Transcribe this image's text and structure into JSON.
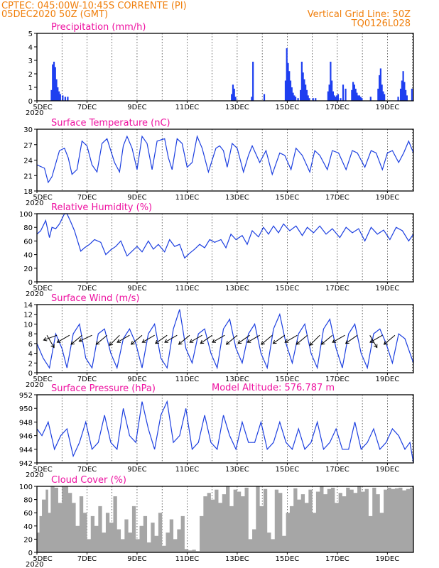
{
  "header": {
    "line1": "CPTEC:   045:00W-10:45S   CORRENTE (PI)",
    "line2": "05DEC2020 50Z (GMT)",
    "right1": "Vertical Grid Line: 50Z",
    "right2": "TQ0126L028"
  },
  "x_ticks": [
    "5DEC",
    "7DEC",
    "9DEC",
    "11DEC",
    "13DEC",
    "15DEC",
    "17DEC",
    "19DEC"
  ],
  "x_tick_positions": [
    0,
    2,
    4,
    6,
    8,
    10,
    12,
    14
  ],
  "x_sublabel": "2020",
  "colors": {
    "header": "#f07f0c",
    "title": "#ee11a0",
    "series": "#1c3fe0",
    "bars": "#1e3ff0",
    "cloud": "#a6a6a6"
  },
  "chart_data": [
    {
      "id": "precip",
      "type": "bar",
      "title": "Precipitation  (mm/h)",
      "ylim": [
        0,
        5
      ],
      "yticks": [
        "0",
        "1",
        "2",
        "3",
        "4",
        "5"
      ],
      "xlim_days": [
        0,
        15.04
      ],
      "x": [
        0.55,
        0.6,
        0.65,
        0.7,
        0.75,
        0.8,
        0.85,
        0.9,
        1.0,
        1.1,
        1.2,
        7.75,
        7.8,
        7.85,
        7.9,
        8.55,
        8.6,
        9.05,
        9.9,
        9.95,
        10.0,
        10.05,
        10.1,
        10.15,
        10.2,
        10.25,
        10.3,
        10.4,
        10.5,
        10.55,
        10.6,
        10.65,
        10.7,
        10.75,
        10.8,
        10.85,
        11.0,
        11.1,
        11.6,
        11.65,
        11.7,
        11.75,
        11.8,
        11.85,
        11.9,
        11.95,
        12.0,
        12.1,
        12.2,
        12.3,
        12.55,
        12.6,
        12.65,
        12.7,
        12.75,
        12.8,
        12.85,
        12.9,
        12.95,
        13.3,
        13.6,
        13.65,
        13.7,
        13.75,
        13.8,
        13.85,
        14.4,
        14.5,
        14.55,
        14.6,
        14.65,
        14.7,
        14.75,
        14.95
      ],
      "values": [
        0.8,
        2.7,
        2.9,
        2.5,
        1.6,
        1.0,
        0.7,
        0.5,
        0.4,
        0.3,
        0.3,
        0.5,
        1.2,
        0.9,
        0.3,
        0.3,
        2.9,
        0.5,
        1.5,
        3.9,
        2.8,
        2.2,
        1.5,
        1.0,
        0.6,
        0.4,
        0.3,
        0.2,
        0.8,
        2.9,
        2.1,
        1.6,
        1.2,
        0.8,
        0.4,
        0.2,
        0.2,
        0.2,
        0.7,
        1.2,
        2.9,
        1.5,
        0.7,
        0.4,
        0.3,
        0.4,
        0.5,
        0.2,
        1.2,
        0.9,
        0.8,
        1.4,
        1.2,
        0.9,
        0.6,
        0.4,
        0.4,
        0.3,
        0.2,
        0.3,
        0.9,
        1.9,
        2.4,
        1.2,
        0.7,
        0.5,
        0.3,
        0.9,
        1.5,
        2.2,
        1.4,
        0.8,
        0.4,
        0.9
      ]
    },
    {
      "id": "temp",
      "type": "line",
      "title": "Surface Temperature (nC)",
      "ylim": [
        18,
        31
      ],
      "yticks": [
        "18",
        "21",
        "24",
        "27",
        "30"
      ],
      "x": [
        0,
        0.3,
        0.45,
        0.6,
        0.9,
        1.1,
        1.25,
        1.4,
        1.6,
        1.8,
        2.0,
        2.2,
        2.4,
        2.6,
        2.8,
        3.1,
        3.3,
        3.45,
        3.6,
        3.8,
        4.0,
        4.2,
        4.4,
        4.6,
        4.8,
        5.1,
        5.25,
        5.4,
        5.6,
        5.8,
        6.0,
        6.2,
        6.4,
        6.6,
        6.85,
        7.15,
        7.3,
        7.45,
        7.6,
        7.8,
        8.0,
        8.25,
        8.45,
        8.6,
        8.9,
        9.15,
        9.4,
        9.7,
        9.9,
        10.15,
        10.35,
        10.6,
        10.9,
        11.1,
        11.3,
        11.6,
        11.8,
        12.05,
        12.35,
        12.6,
        12.8,
        13.1,
        13.35,
        13.55,
        13.8,
        14.0,
        14.2,
        14.45,
        14.65,
        14.85,
        15.04
      ],
      "values": [
        23.5,
        22.8,
        19.8,
        21.0,
        26.5,
        27.0,
        25.0,
        21.5,
        22.5,
        28.5,
        27.5,
        23.5,
        22.0,
        28.0,
        29.0,
        24.0,
        22.0,
        27.5,
        29.5,
        27.0,
        22.5,
        29.5,
        28.0,
        22.5,
        28.5,
        29.0,
        25.0,
        22.5,
        29.0,
        28.0,
        23.0,
        24.0,
        29.5,
        27.0,
        22.0,
        27.0,
        27.5,
        26.5,
        23.0,
        28.0,
        27.0,
        22.0,
        25.5,
        27.5,
        24.0,
        26.5,
        21.5,
        26.0,
        25.5,
        22.5,
        27.0,
        25.5,
        22.0,
        26.5,
        25.5,
        22.5,
        26.5,
        26.0,
        22.5,
        26.5,
        26.0,
        23.0,
        26.5,
        26.0,
        22.5,
        26.0,
        26.5,
        24.0,
        26.0,
        28.5,
        26.0
      ]
    },
    {
      "id": "rh",
      "type": "line",
      "title": "Relative Humidity (%)",
      "ylim": [
        0,
        100
      ],
      "yticks": [
        "0",
        "20",
        "40",
        "60",
        "80",
        "100"
      ],
      "x": [
        0,
        0.15,
        0.35,
        0.5,
        0.6,
        0.75,
        0.9,
        1.1,
        1.2,
        1.35,
        1.5,
        1.75,
        1.9,
        2.1,
        2.3,
        2.55,
        2.75,
        2.95,
        3.15,
        3.35,
        3.6,
        3.8,
        4.0,
        4.2,
        4.45,
        4.65,
        4.85,
        5.1,
        5.3,
        5.5,
        5.7,
        5.9,
        6.1,
        6.3,
        6.5,
        6.7,
        6.9,
        7.1,
        7.35,
        7.55,
        7.75,
        7.95,
        8.2,
        8.4,
        8.6,
        8.85,
        9.05,
        9.25,
        9.45,
        9.65,
        9.85,
        10.1,
        10.35,
        10.6,
        10.8,
        11.05,
        11.3,
        11.55,
        11.8,
        12.1,
        12.35,
        12.6,
        12.85,
        13.1,
        13.35,
        13.6,
        13.85,
        14.1,
        14.35,
        14.6,
        14.85,
        15.04
      ],
      "values": [
        70,
        75,
        90,
        65,
        80,
        78,
        85,
        100,
        100,
        88,
        75,
        45,
        50,
        55,
        62,
        58,
        40,
        47,
        52,
        60,
        38,
        45,
        52,
        44,
        60,
        48,
        55,
        44,
        62,
        52,
        55,
        35,
        42,
        48,
        55,
        50,
        62,
        58,
        62,
        50,
        70,
        62,
        68,
        55,
        75,
        66,
        80,
        70,
        82,
        72,
        85,
        75,
        82,
        68,
        80,
        72,
        82,
        70,
        78,
        65,
        80,
        72,
        78,
        60,
        80,
        70,
        76,
        62,
        80,
        75,
        60,
        70
      ]
    },
    {
      "id": "wind",
      "type": "line",
      "title": "Surface Wind (m/s)",
      "ylim": [
        0,
        14
      ],
      "yticks": [
        "0",
        "2",
        "4",
        "6",
        "8",
        "10",
        "12",
        "14"
      ],
      "x": [
        0,
        0.25,
        0.5,
        0.75,
        1.0,
        1.2,
        1.45,
        1.7,
        1.95,
        2.2,
        2.45,
        2.7,
        2.95,
        3.2,
        3.45,
        3.7,
        3.95,
        4.2,
        4.45,
        4.7,
        4.95,
        5.2,
        5.45,
        5.7,
        5.95,
        6.2,
        6.45,
        6.7,
        6.95,
        7.2,
        7.45,
        7.7,
        7.95,
        8.2,
        8.45,
        8.7,
        8.95,
        9.2,
        9.45,
        9.7,
        9.95,
        10.2,
        10.45,
        10.7,
        10.95,
        11.2,
        11.45,
        11.7,
        11.95,
        12.2,
        12.45,
        12.7,
        12.95,
        13.2,
        13.45,
        13.7,
        13.95,
        14.2,
        14.45,
        14.7,
        15.04
      ],
      "values": [
        6,
        3,
        1,
        8,
        5,
        1,
        8,
        10,
        3,
        1,
        8,
        9,
        4,
        1,
        7,
        9,
        6,
        1,
        8,
        10,
        3,
        1,
        9,
        13,
        5,
        2,
        8,
        9,
        4,
        1,
        9,
        11,
        5,
        2,
        8,
        10,
        4,
        1,
        9,
        12,
        6,
        2,
        8,
        10,
        4,
        1,
        9,
        11,
        5,
        1,
        8,
        10,
        4,
        1,
        8,
        9,
        6,
        2,
        8,
        7,
        2
      ],
      "arrows": [
        [
          0.4,
          -60
        ],
        [
          0.8,
          -160
        ],
        [
          1.3,
          -150
        ],
        [
          1.8,
          -140
        ],
        [
          2.2,
          -155
        ],
        [
          2.8,
          -140
        ],
        [
          3.3,
          -135
        ],
        [
          3.7,
          -150
        ],
        [
          4.2,
          -140
        ],
        [
          4.7,
          -150
        ],
        [
          5.2,
          -145
        ],
        [
          5.6,
          -150
        ],
        [
          6.1,
          -140
        ],
        [
          6.6,
          -150
        ],
        [
          7.0,
          -145
        ],
        [
          7.5,
          -150
        ],
        [
          8.0,
          -140
        ],
        [
          8.5,
          -145
        ],
        [
          8.9,
          -150
        ],
        [
          9.4,
          -140
        ],
        [
          9.9,
          -145
        ],
        [
          10.4,
          -150
        ],
        [
          10.8,
          -140
        ],
        [
          11.3,
          -135
        ],
        [
          11.8,
          -140
        ],
        [
          12.3,
          -150
        ],
        [
          12.8,
          -145
        ],
        [
          13.3,
          -60
        ],
        [
          13.8,
          -150
        ],
        [
          14.3,
          -140
        ]
      ]
    },
    {
      "id": "pres",
      "type": "line",
      "title": "Surface Pressure (hPa)",
      "ylim": [
        942,
        952
      ],
      "yticks": [
        "942",
        "944",
        "946",
        "948",
        "950",
        "952"
      ],
      "x": [
        0,
        0.2,
        0.45,
        0.7,
        0.95,
        1.2,
        1.45,
        1.7,
        1.95,
        2.2,
        2.45,
        2.7,
        2.95,
        3.2,
        3.45,
        3.7,
        3.95,
        4.2,
        4.45,
        4.7,
        4.95,
        5.2,
        5.45,
        5.7,
        5.95,
        6.2,
        6.45,
        6.7,
        6.95,
        7.2,
        7.45,
        7.7,
        7.95,
        8.2,
        8.45,
        8.7,
        8.95,
        9.2,
        9.45,
        9.7,
        9.95,
        10.2,
        10.45,
        10.7,
        10.95,
        11.2,
        11.45,
        11.7,
        11.95,
        12.2,
        12.45,
        12.7,
        12.95,
        13.2,
        13.45,
        13.7,
        13.95,
        14.2,
        14.45,
        14.7,
        14.9,
        15.04
      ],
      "values": [
        947,
        946,
        948,
        944,
        946,
        947,
        943,
        945,
        948,
        944,
        945,
        949,
        945,
        944,
        950,
        946,
        945,
        951,
        947,
        944,
        949,
        951,
        945,
        946,
        950,
        944,
        945,
        949,
        945,
        944,
        949,
        946,
        944,
        948,
        945,
        945,
        948,
        944,
        945,
        948,
        945,
        944,
        947,
        944,
        945,
        948,
        944,
        945,
        947,
        944,
        944,
        948,
        944,
        945,
        947,
        944,
        945,
        947,
        946,
        944,
        945,
        942
      ]
    },
    {
      "id": "cloud",
      "type": "area",
      "title": "Cloud Cover (%)",
      "ylim": [
        0,
        100
      ],
      "yticks": [
        "0",
        "20",
        "40",
        "60",
        "80",
        "100"
      ],
      "x": [
        0,
        0.1,
        0.2,
        0.35,
        0.45,
        0.55,
        0.7,
        0.85,
        1.0,
        1.1,
        1.25,
        1.4,
        1.55,
        1.7,
        1.85,
        2.0,
        2.15,
        2.3,
        2.45,
        2.6,
        2.75,
        2.9,
        3.05,
        3.2,
        3.35,
        3.5,
        3.65,
        3.8,
        3.95,
        4.1,
        4.25,
        4.4,
        4.55,
        4.7,
        4.85,
        5.0,
        5.15,
        5.3,
        5.45,
        5.6,
        5.75,
        5.9,
        6.05,
        6.2,
        6.35,
        6.5,
        6.65,
        6.8,
        6.95,
        7.1,
        7.25,
        7.4,
        7.55,
        7.7,
        7.85,
        8.0,
        8.15,
        8.3,
        8.45,
        8.6,
        8.75,
        8.9,
        9.05,
        9.2,
        9.35,
        9.5,
        9.65,
        9.8,
        9.95,
        10.1,
        10.25,
        10.4,
        10.55,
        10.7,
        10.85,
        11.0,
        11.15,
        11.3,
        11.45,
        11.6,
        11.75,
        11.9,
        12.05,
        12.2,
        12.35,
        12.5,
        12.65,
        12.8,
        12.95,
        13.1,
        13.25,
        13.4,
        13.55,
        13.7,
        13.85,
        14.0,
        14.15,
        14.3,
        14.45,
        14.6,
        14.75,
        14.9,
        15.04
      ],
      "values": [
        30,
        55,
        80,
        95,
        60,
        100,
        98,
        75,
        100,
        100,
        90,
        75,
        40,
        85,
        60,
        20,
        55,
        40,
        70,
        30,
        60,
        45,
        85,
        35,
        20,
        50,
        30,
        70,
        20,
        40,
        55,
        15,
        45,
        25,
        60,
        10,
        30,
        50,
        20,
        35,
        55,
        5,
        3,
        4,
        2,
        55,
        85,
        90,
        80,
        95,
        75,
        88,
        100,
        70,
        95,
        92,
        85,
        98,
        20,
        35,
        100,
        70,
        96,
        30,
        20,
        95,
        90,
        25,
        60,
        70,
        97,
        80,
        88,
        75,
        95,
        60,
        92,
        100,
        88,
        96,
        98,
        75,
        90,
        85,
        98,
        95,
        90,
        100,
        92,
        96,
        55,
        98,
        88,
        60,
        95,
        98,
        96,
        97,
        98,
        94,
        96,
        98,
        97
      ]
    }
  ]
}
